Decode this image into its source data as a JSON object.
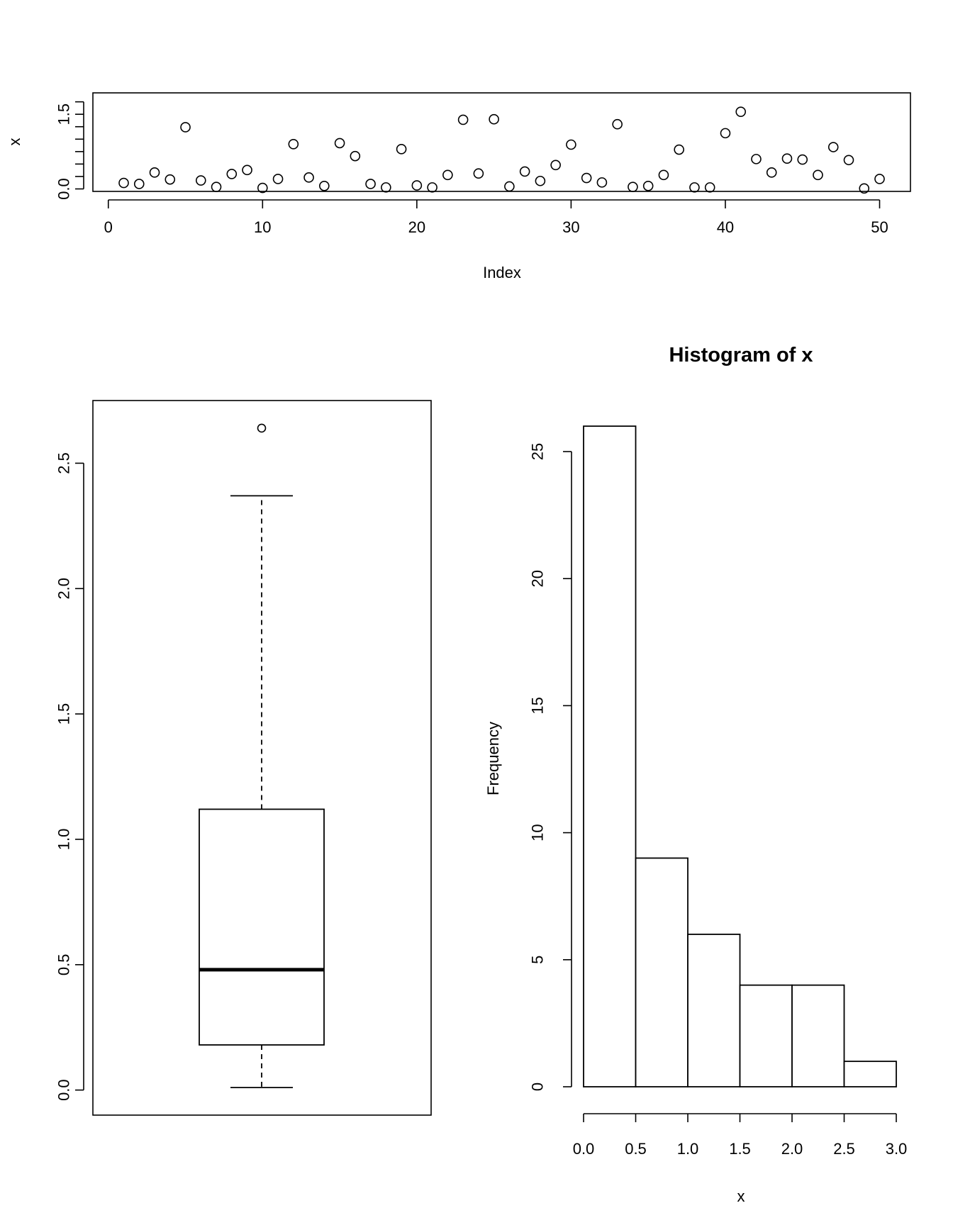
{
  "chart_data": [
    {
      "type": "scatter",
      "title": "",
      "xlabel": "Index",
      "ylabel": "x",
      "xlim": [
        -1,
        52
      ],
      "ylim": [
        -0.05,
        1.93
      ],
      "xticks": [
        0,
        10,
        20,
        30,
        40,
        50
      ],
      "yticks": [
        0.0,
        0.5,
        1.0,
        1.5
      ],
      "yticks_minor": [
        0.25,
        0.75,
        1.25,
        1.75
      ],
      "ytick_labels": [
        "0.0",
        "1.5"
      ],
      "x": [
        1,
        2,
        3,
        4,
        5,
        6,
        7,
        8,
        9,
        10,
        11,
        12,
        13,
        14,
        15,
        16,
        17,
        18,
        19,
        20,
        21,
        22,
        23,
        24,
        25,
        26,
        27,
        28,
        29,
        30,
        31,
        32,
        33,
        34,
        35,
        36,
        37,
        38,
        39,
        40,
        41,
        42,
        42,
        44,
        45,
        46,
        47,
        48,
        49,
        50
      ],
      "y": [
        0.12,
        0.1,
        0.33,
        0.19,
        1.24,
        0.17,
        0.04,
        0.3,
        0.38,
        0.02,
        0.2,
        0.9,
        0.23,
        0.06,
        0.92,
        0.66,
        0.1,
        0.03,
        0.8,
        0.07,
        0.03,
        0.28,
        1.39,
        0.31,
        1.4,
        0.05,
        0.35,
        0.16,
        0.48,
        0.89,
        0.22,
        0.13,
        1.3,
        0.04,
        0.06,
        0.28,
        0.79,
        0.03,
        0.03,
        1.12,
        1.55,
        0.6,
        0.33,
        0.61,
        0.59,
        0.28,
        0.84,
        0.58,
        0.01,
        0.2
      ],
      "grid": false
    },
    {
      "type": "boxplot",
      "title": "",
      "ylim": [
        -0.1,
        2.75
      ],
      "yticks": [
        0.0,
        0.5,
        1.0,
        1.5,
        2.0,
        2.5
      ],
      "ytick_labels": [
        "0.0",
        "0.5",
        "1.0",
        "1.5",
        "2.0",
        "2.5"
      ],
      "whisker_low": 0.01,
      "q1": 0.18,
      "median": 0.48,
      "q3": 1.12,
      "whisker_high": 2.37,
      "outliers": [
        2.64
      ],
      "grid": false
    },
    {
      "type": "bar",
      "title": "Histogram of x",
      "xlabel": "x",
      "ylabel": "Frequency",
      "bin_edges": [
        0.0,
        0.5,
        1.0,
        1.5,
        2.0,
        2.5,
        3.0
      ],
      "values": [
        26,
        9,
        6,
        4,
        4,
        1
      ],
      "xlim": [
        0,
        3.0
      ],
      "ylim": [
        0,
        26
      ],
      "xticks": [
        0.0,
        0.5,
        1.0,
        1.5,
        2.0,
        2.5,
        3.0
      ],
      "xtick_labels": [
        "0.0",
        "0.5",
        "1.0",
        "1.5",
        "2.0",
        "2.5",
        "3.0"
      ],
      "yticks": [
        0,
        5,
        10,
        15,
        20,
        25
      ],
      "ytick_labels": [
        "0",
        "5",
        "10",
        "15",
        "20",
        "25"
      ],
      "grid": false
    }
  ]
}
